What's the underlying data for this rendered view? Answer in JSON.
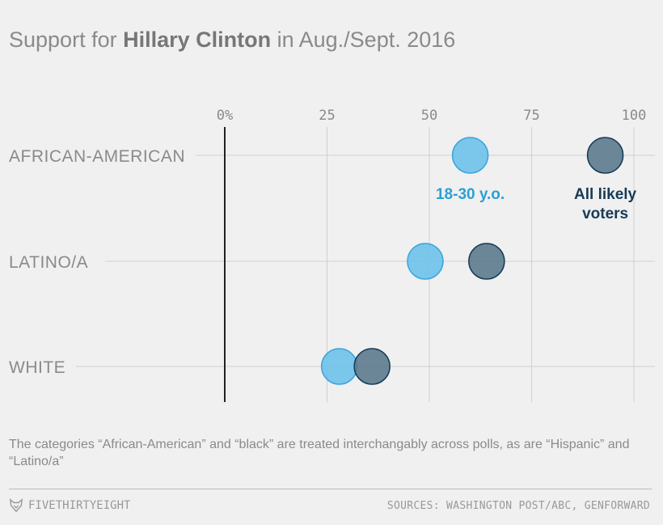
{
  "title": {
    "prefix": "Support for ",
    "highlight": "Hillary Clinton",
    "suffix": " in Aug./Sept. 2016"
  },
  "chart_data": {
    "type": "scatter",
    "title": "Support for Hillary Clinton in Aug./Sept. 2016",
    "x_ticks": [
      "0%",
      "25",
      "50",
      "75",
      "100"
    ],
    "x_tick_values": [
      0,
      25,
      50,
      75,
      100
    ],
    "xlim": [
      0,
      100
    ],
    "categories": [
      "AFRICAN-AMERICAN",
      "LATINO/A",
      "WHITE"
    ],
    "series": [
      {
        "name": "18-30 y.o.",
        "color": "#3aa5dc",
        "fill": "#6ec1ea",
        "values": [
          60,
          49,
          28
        ]
      },
      {
        "name": "All likely voters",
        "color": "#173b57",
        "fill": "#5c7a8c",
        "values": [
          93,
          64,
          36
        ]
      }
    ],
    "annotations": [
      {
        "text": "18-30 y.o.",
        "series": 0,
        "category": 0
      },
      {
        "text": "All likely",
        "series": 1,
        "category": 0
      },
      {
        "text": "voters",
        "series": 1,
        "category": 0
      }
    ]
  },
  "footnote": "The categories “African-American” and “black” are treated interchangably across polls, as are “Hispanic” and “Latino/a”",
  "footer": {
    "brand": "FIVETHIRTYEIGHT",
    "sources": "SOURCES: WASHINGTON POST/ABC, GENFORWARD"
  }
}
